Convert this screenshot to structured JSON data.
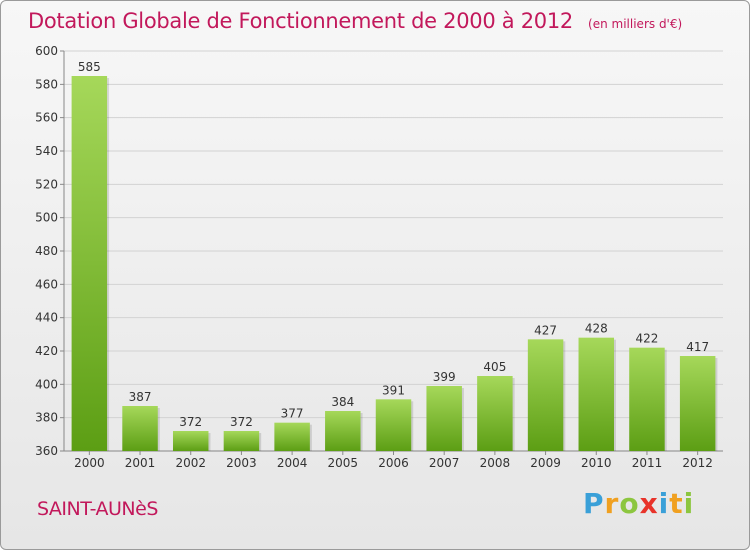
{
  "page": {
    "title": "Dotation Globale de Fonctionnement de 2000 à 2012",
    "unit": "(en milliers d'€)",
    "commune": "SAINT-AUNèS",
    "logo": {
      "letters": [
        {
          "char": "P",
          "color": "#3aa0d8"
        },
        {
          "char": "r",
          "color": "#f0a020"
        },
        {
          "char": "o",
          "color": "#8cc63f"
        },
        {
          "char": "x",
          "color": "#e8332a"
        },
        {
          "char": "i",
          "color": "#3aa0d8"
        },
        {
          "char": "t",
          "color": "#f0a020"
        },
        {
          "char": "i",
          "color": "#8cc63f"
        }
      ]
    }
  },
  "chart_data": {
    "type": "bar",
    "categories": [
      "2000",
      "2001",
      "2002",
      "2003",
      "2004",
      "2005",
      "2006",
      "2007",
      "2008",
      "2009",
      "2010",
      "2011",
      "2012"
    ],
    "values": [
      585,
      387,
      372,
      372,
      377,
      384,
      391,
      399,
      405,
      427,
      428,
      422,
      417
    ],
    "ylim": [
      360,
      600
    ],
    "yticks": [
      360,
      380,
      400,
      420,
      440,
      460,
      480,
      500,
      520,
      540,
      560,
      580,
      600
    ],
    "grid": true,
    "bar_color": "#7cbf2a"
  }
}
